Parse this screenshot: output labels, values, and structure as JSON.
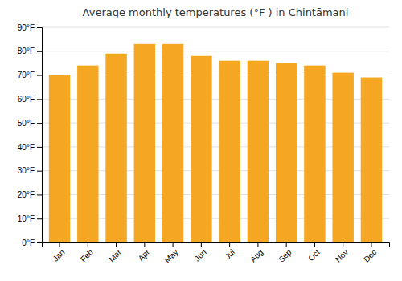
{
  "chart_data": {
    "type": "bar",
    "title": "Average monthly temperatures (°F ) in Chintāmani",
    "categories": [
      "Jan",
      "Feb",
      "Mar",
      "Apr",
      "May",
      "Jun",
      "Jul",
      "Aug",
      "Sep",
      "Oct",
      "Nov",
      "Dec"
    ],
    "values": [
      70,
      74,
      79,
      83,
      83,
      78,
      76,
      76,
      75,
      74,
      71,
      69
    ],
    "color": "#F5A623",
    "ylim": [
      0,
      90
    ],
    "yticks": [
      {
        "value": 0,
        "label": "0°F"
      },
      {
        "value": 10,
        "label": "10°F"
      },
      {
        "value": 20,
        "label": "20°F"
      },
      {
        "value": 30,
        "label": "30°F"
      },
      {
        "value": 40,
        "label": "40°F"
      },
      {
        "value": 50,
        "label": "50°F"
      },
      {
        "value": 60,
        "label": "60°F"
      },
      {
        "value": 70,
        "label": "70°F"
      },
      {
        "value": 80,
        "label": "80°F"
      },
      {
        "value": 90,
        "label": "90°F"
      }
    ],
    "grid": true
  }
}
